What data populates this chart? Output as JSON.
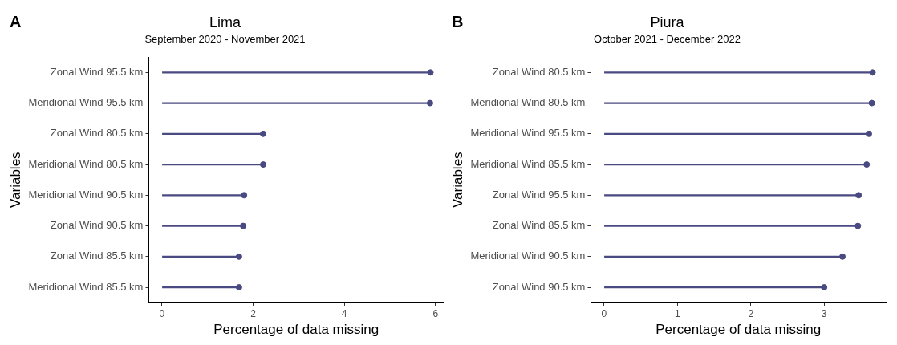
{
  "chart_data": [
    {
      "type": "lollipop",
      "orientation": "horizontal",
      "title": "Lima",
      "subtitle": "September 2020 - November 2021",
      "xlabel": "Percentage of data missing",
      "ylabel": "Variables",
      "annotations": [
        "A"
      ],
      "categories": [
        "Zonal Wind 95.5 km",
        "Meridional Wind 95.5 km",
        "Zonal Wind 80.5 km",
        "Meridional Wind 80.5 km",
        "Meridional Wind 90.5 km",
        "Zonal Wind 90.5 km",
        "Zonal Wind 85.5 km",
        "Meridional Wind 85.5 km"
      ],
      "series": [
        {
          "color": "#4a4a82",
          "values": [
            5.89,
            5.88,
            2.22,
            2.22,
            1.8,
            1.78,
            1.69,
            1.69
          ]
        }
      ],
      "xlim": [
        -0.29,
        6.18
      ],
      "xticks": [
        0,
        2,
        4,
        6
      ],
      "grid": false,
      "legend": false,
      "marker": "circle"
    },
    {
      "type": "lollipop",
      "orientation": "horizontal",
      "title": "Piura",
      "subtitle": "October 2021 - December 2022",
      "xlabel": "Percentage of data missing",
      "ylabel": "Variables",
      "annotations": [
        "B"
      ],
      "categories": [
        "Zonal Wind 80.5 km",
        "Meridional Wind 80.5 km",
        "Meridional Wind 95.5 km",
        "Meridional Wind 85.5 km",
        "Zonal Wind 95.5 km",
        "Zonal Wind 85.5 km",
        "Meridional Wind 90.5 km",
        "Zonal Wind 90.5 km"
      ],
      "series": [
        {
          "color": "#4a4a82",
          "values": [
            3.66,
            3.65,
            3.61,
            3.58,
            3.47,
            3.46,
            3.25,
            3.0
          ]
        }
      ],
      "xlim": [
        -0.18,
        3.84
      ],
      "xticks": [
        0,
        1,
        2,
        3
      ],
      "grid": false,
      "legend": false,
      "marker": "circle"
    }
  ]
}
